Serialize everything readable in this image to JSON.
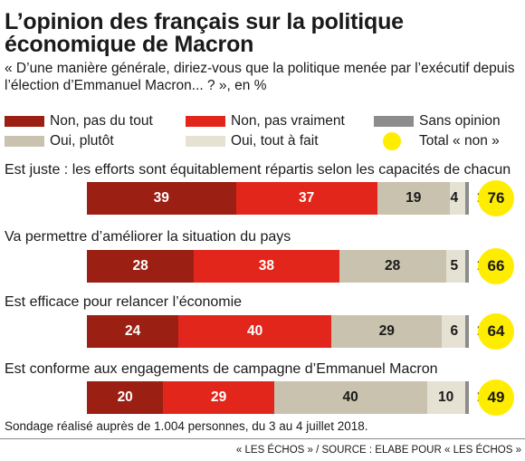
{
  "title": "L’opinion des français sur la politique économique de Macron",
  "subtitle": "« D’une manière générale, diriez-vous que la politique menée par l’exécutif depuis l’élection d’Emmanuel Macron... ? », en %",
  "legend": [
    {
      "label": "Non, pas du tout",
      "color": "#9b1f12"
    },
    {
      "label": "Non, pas vraiment",
      "color": "#e3261b"
    },
    {
      "label": "Sans opinion",
      "color": "#8c8c8c"
    },
    {
      "label": "Oui, plutôt",
      "color": "#c9c2ae"
    },
    {
      "label": "Oui, tout à fait",
      "color": "#e5e2d3"
    },
    {
      "label": "Total « non »",
      "color": "#ffed00"
    }
  ],
  "chart_data": {
    "type": "bar",
    "orientation": "horizontal",
    "stacked": true,
    "categories": [
      "Est juste : les efforts sont équitablement répartis selon les capacités de chacun",
      "Va permettre d’améliorer la situation du pays",
      "Est efficace pour relancer l’économie",
      "Est conforme aux engagements de campagne d’Emmanuel Macron"
    ],
    "series": [
      {
        "name": "Non, pas du tout",
        "color": "#9b1f12",
        "values": [
          39,
          28,
          24,
          20
        ]
      },
      {
        "name": "Non, pas vraiment",
        "color": "#e3261b",
        "values": [
          37,
          38,
          40,
          29
        ]
      },
      {
        "name": "Oui, plutôt",
        "color": "#c9c2ae",
        "values": [
          19,
          28,
          29,
          40
        ]
      },
      {
        "name": "Oui, tout à fait",
        "color": "#e5e2d3",
        "values": [
          4,
          5,
          6,
          10
        ]
      },
      {
        "name": "Sans opinion",
        "color": "#8c8c8c",
        "values": [
          1,
          1,
          1,
          1
        ]
      }
    ],
    "total_non": {
      "name": "Total « non »",
      "color": "#ffed00",
      "values": [
        76,
        66,
        64,
        49
      ]
    }
  },
  "footnote": "Sondage réalisé auprès de 1.004 personnes, du 3 au 4 juillet 2018.",
  "source": "« LES ÉCHOS » / SOURCE : ELABE POUR « LES ÉCHOS »"
}
